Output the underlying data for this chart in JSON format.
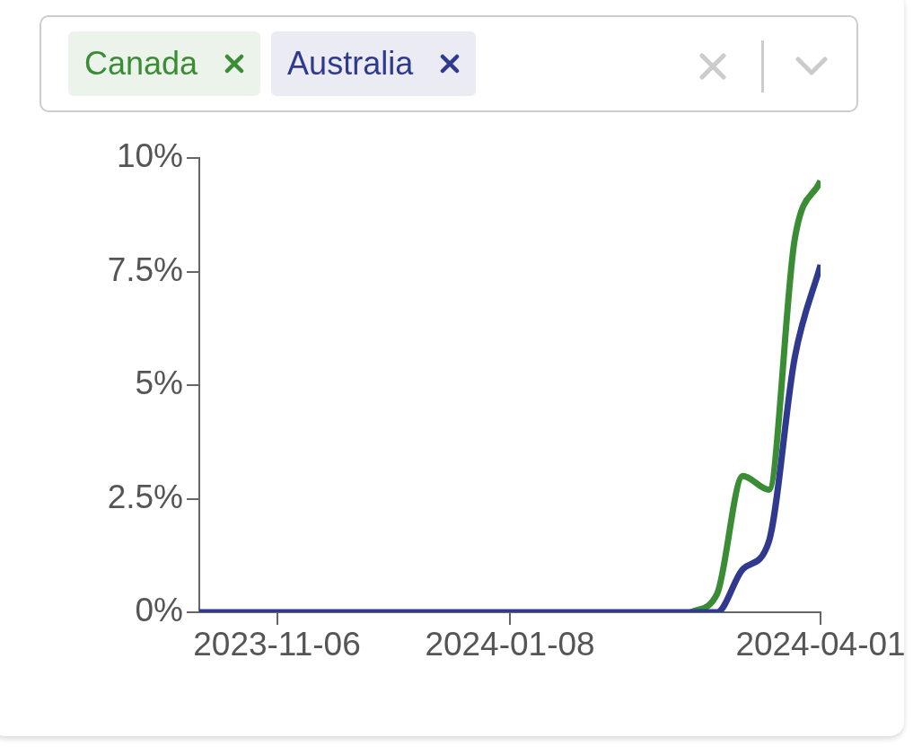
{
  "chart_data": {
    "type": "line",
    "x": [
      "2023-10-16",
      "2023-10-23",
      "2023-10-30",
      "2023-11-06",
      "2023-11-13",
      "2023-11-20",
      "2023-11-27",
      "2023-12-04",
      "2023-12-11",
      "2023-12-18",
      "2023-12-25",
      "2024-01-01",
      "2024-01-08",
      "2024-01-15",
      "2024-01-22",
      "2024-01-29",
      "2024-02-05",
      "2024-02-12",
      "2024-02-19",
      "2024-02-26",
      "2024-03-04",
      "2024-03-11",
      "2024-03-18",
      "2024-03-25",
      "2024-04-01"
    ],
    "series": [
      {
        "name": "Canada",
        "color": "#3a8c35",
        "values": [
          null,
          null,
          null,
          null,
          null,
          null,
          null,
          null,
          null,
          null,
          null,
          null,
          null,
          null,
          null,
          null,
          null,
          null,
          null,
          0,
          0.4,
          3.0,
          2.7,
          8.2,
          9.5
        ]
      },
      {
        "name": "Australia",
        "color": "#2f3a8e",
        "values": [
          0,
          0,
          0,
          0,
          0,
          0,
          0,
          0,
          0,
          0,
          0,
          0,
          0,
          0,
          0,
          0,
          0,
          0,
          0,
          0,
          0,
          0.95,
          1.55,
          5.6,
          7.65
        ]
      }
    ],
    "xlim": [
      "2023-10-16",
      "2024-04-01"
    ],
    "xticks": [
      "2023-11-06",
      "2024-01-08",
      "2024-04-01"
    ],
    "ylim": [
      0,
      10
    ],
    "yticks": [
      {
        "value": 0,
        "label": "0%"
      },
      {
        "value": 2.5,
        "label": "2.5%"
      },
      {
        "value": 5,
        "label": "5%"
      },
      {
        "value": 7.5,
        "label": "7.5%"
      },
      {
        "value": 10,
        "label": "10%"
      }
    ],
    "grid": false,
    "legend": "top",
    "marker": "none",
    "line_style": "solid"
  }
}
